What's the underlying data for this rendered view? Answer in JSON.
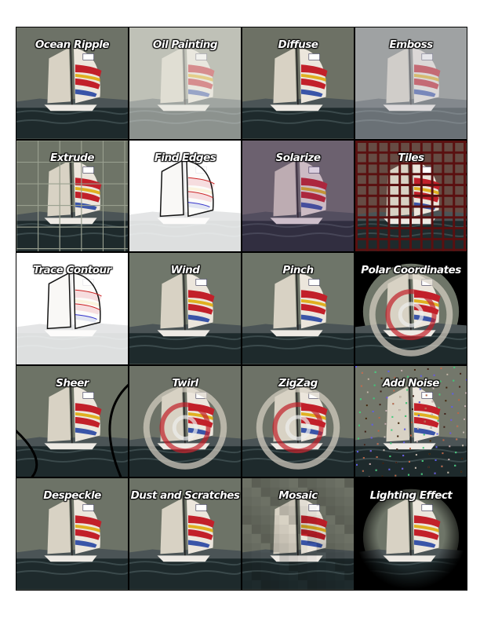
{
  "filters": [
    {
      "label": "Ocean Ripple",
      "effect": "ripple",
      "bg": "#6b6f66"
    },
    {
      "label": "Oil Painting",
      "effect": "oil",
      "bg": "#bdbdb4"
    },
    {
      "label": "Diffuse",
      "effect": "diffuse",
      "bg": "#6b6b62"
    },
    {
      "label": "Emboss",
      "effect": "emboss",
      "bg": "#9a98a0"
    },
    {
      "label": "Extrude",
      "effect": "extrude",
      "bg": "#6f7468"
    },
    {
      "label": "Find Edges",
      "effect": "edges",
      "bg": "#ffffff"
    },
    {
      "label": "Solarize",
      "effect": "solarize",
      "bg": "#6d6470"
    },
    {
      "label": "Tiles",
      "effect": "tiles",
      "bg": "#5a1010"
    },
    {
      "label": "Trace Contour",
      "effect": "trace",
      "bg": "#ffffff"
    },
    {
      "label": "Wind",
      "effect": "wind",
      "bg": "#737a70"
    },
    {
      "label": "Pinch",
      "effect": "pinch",
      "bg": "#6f766c"
    },
    {
      "label": "Polar Coordinates",
      "effect": "polar",
      "bg": "#000000"
    },
    {
      "label": "Sheer",
      "effect": "sheer",
      "bg": "#6b7064"
    },
    {
      "label": "Twirl",
      "effect": "twirl",
      "bg": "#6b6f66"
    },
    {
      "label": "ZigZag",
      "effect": "zigzag",
      "bg": "#6b6f66"
    },
    {
      "label": "Add Noise",
      "effect": "noise",
      "bg": "#7a7a70"
    },
    {
      "label": "Despeckle",
      "effect": "despeckle",
      "bg": "#6b7066"
    },
    {
      "label": "Dust and Scratches",
      "effect": "dust",
      "bg": "#6b7066"
    },
    {
      "label": "Mosaic",
      "effect": "mosaic",
      "bg": "#6b6b62"
    },
    {
      "label": "Lighting Effect",
      "effect": "lighting",
      "bg": "#000000"
    }
  ],
  "colors": {
    "sky": "#6e7568",
    "sea": "#1e2a2c",
    "sail_white": "#ece6dc",
    "stripe_red": "#c2202a",
    "stripe_blue": "#3a55a8",
    "stripe_yellow": "#e0b020"
  }
}
